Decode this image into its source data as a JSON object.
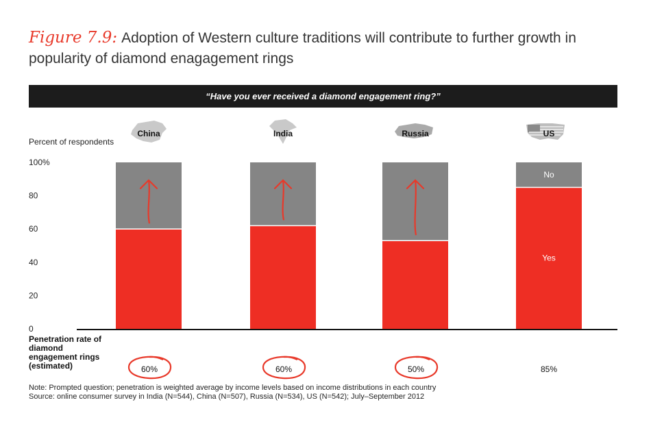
{
  "title": {
    "figure_label": "Figure 7.9:",
    "text": "Adoption of Western culture traditions will contribute to further growth in popularity of diamond enagagement rings"
  },
  "banner": "“Have you ever received a diamond engagement ring?”",
  "colors": {
    "yes": "#ee2e24",
    "no": "#858585",
    "accent": "#e8392a"
  },
  "chart_data": {
    "type": "bar",
    "stacked": true,
    "ylabel": "Percent of respondents",
    "ylim": [
      0,
      100
    ],
    "y_ticks": [
      "0",
      "20",
      "40",
      "60",
      "80",
      "100%"
    ],
    "categories": [
      "China",
      "India",
      "Russia",
      "US"
    ],
    "series": [
      {
        "name": "Yes",
        "values": [
          60,
          62,
          53,
          85
        ]
      },
      {
        "name": "No",
        "values": [
          40,
          38,
          47,
          15
        ]
      }
    ],
    "segment_labels": {
      "yes": "Yes",
      "no": "No"
    },
    "growth_arrows": [
      true,
      true,
      true,
      false
    ]
  },
  "penetration": {
    "label": "Penetration rate of diamond engagement rings (estimated)",
    "values": [
      "60%",
      "60%",
      "50%",
      "85%"
    ],
    "circled": [
      true,
      true,
      true,
      false
    ]
  },
  "notes": [
    "Note: Prompted question; penetration is weighted average by income levels based on income distributions in each country",
    "Source: online consumer survey in India (N=544), China (N=507), Russia (N=534), US (N=542); July–September 2012"
  ]
}
